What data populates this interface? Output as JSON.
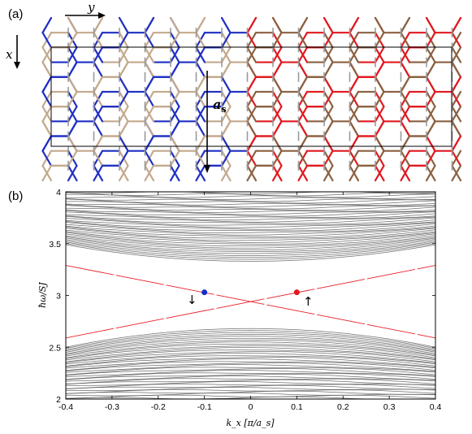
{
  "panel_a": {
    "label": "(a)",
    "axis_y": "y",
    "axis_x": "x",
    "vector_label": "a",
    "vector_sub": "s",
    "colors": {
      "blue": "#1f2fc4",
      "red": "#e0191f",
      "tan": "#c4a98c",
      "brown": "#8b6040",
      "gray": "#9a9a9a"
    }
  },
  "panel_b": {
    "label": "(b)",
    "arrow_down": "↓",
    "arrow_up": "↑",
    "colors": {
      "bulk": "#555555",
      "edge": "#e8202a",
      "dot_left": "#1b2ccc",
      "dot_right": "#e0191f"
    }
  },
  "chart_data": {
    "type": "line",
    "title": "",
    "xlabel": "k_x [π/a_s]",
    "ylabel": "ħω/SJ",
    "xlim": [
      -0.4,
      0.4
    ],
    "ylim": [
      2,
      4
    ],
    "xticks": [
      "-0.4",
      "-0.3",
      "-0.2",
      "-0.1",
      "0",
      "0.1",
      "0.2",
      "0.3",
      "0.4"
    ],
    "yticks": [
      "2",
      "2.5",
      "3",
      "3.5",
      "4"
    ],
    "grid": false,
    "series": [
      {
        "x": [
          -0.4,
          0.4
        ],
        "y": [
          3.29,
          2.59
        ]
      },
      {
        "x": [
          -0.4,
          0.4
        ],
        "y": [
          2.59,
          3.29
        ]
      }
    ],
    "points": [
      {
        "x": -0.1,
        "y": 3.03,
        "color": "#1b2ccc"
      },
      {
        "x": 0.1,
        "y": 3.03,
        "color": "#e0191f"
      }
    ],
    "bulk_upper": {
      "bottom_at_center": 3.33,
      "bottom_at_edge": 3.49,
      "top": 4.0
    },
    "bulk_lower": {
      "top_at_center": 2.68,
      "top_at_edge": 2.5,
      "bottom": 2.0
    }
  }
}
